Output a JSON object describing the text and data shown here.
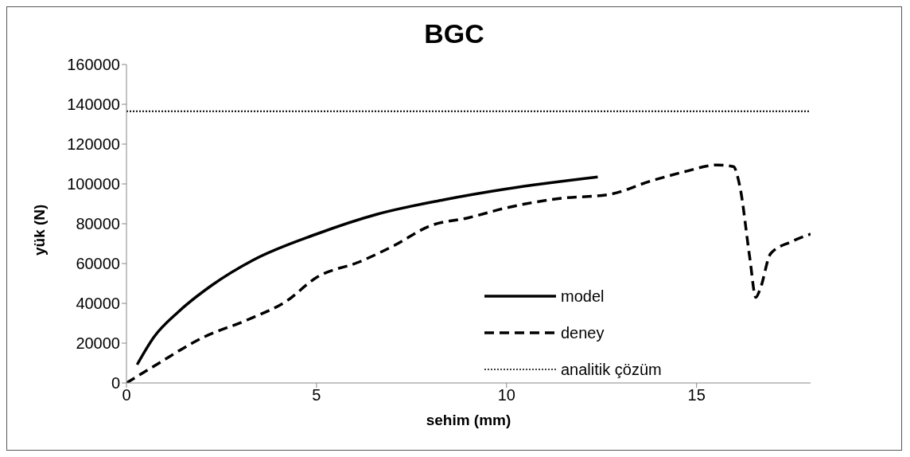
{
  "chart_data": {
    "type": "line",
    "title": "BGC",
    "xlabel": "sehim (mm)",
    "ylabel": "yük (N)",
    "xlim": [
      0,
      18
    ],
    "xticks": [
      0,
      5,
      10,
      15
    ],
    "ylim": [
      0,
      160000
    ],
    "yticks": [
      0,
      20000,
      40000,
      60000,
      80000,
      100000,
      120000,
      140000,
      160000
    ],
    "legend": "bottom right",
    "marker": "none",
    "series": [
      {
        "name": "model",
        "color": "#000000",
        "line_style": "solid",
        "x": [
          0.28,
          0.72,
          1.37,
          2.24,
          3.33,
          5,
          6.6,
          8.34,
          10,
          12.4
        ],
        "values": [
          9200,
          23000,
          35800,
          49000,
          61700,
          74800,
          84800,
          92000,
          97500,
          103500
        ]
      },
      {
        "name": "deney",
        "color": "#000000",
        "line_style": "dashed",
        "x": [
          0,
          0.72,
          2.03,
          3.22,
          4.2,
          5,
          6.15,
          7.04,
          8,
          9,
          10,
          11.4,
          12.7,
          13.8,
          14.66,
          15.53,
          15.97,
          16.14,
          16.4,
          16.56,
          16.67,
          16.95,
          17.5,
          18
        ],
        "values": [
          0,
          8400,
          23000,
          32000,
          41000,
          53000,
          61000,
          69000,
          79000,
          83000,
          88000,
          92700,
          94700,
          101500,
          106000,
          109500,
          108700,
          98700,
          63000,
          43000,
          47000,
          65000,
          71000,
          74800
        ]
      }
    ],
    "ref_lines": [
      {
        "axis": "y",
        "value": 136500,
        "label": "analitik çözüm",
        "color": "#000000",
        "line_style": "dotted"
      }
    ]
  }
}
